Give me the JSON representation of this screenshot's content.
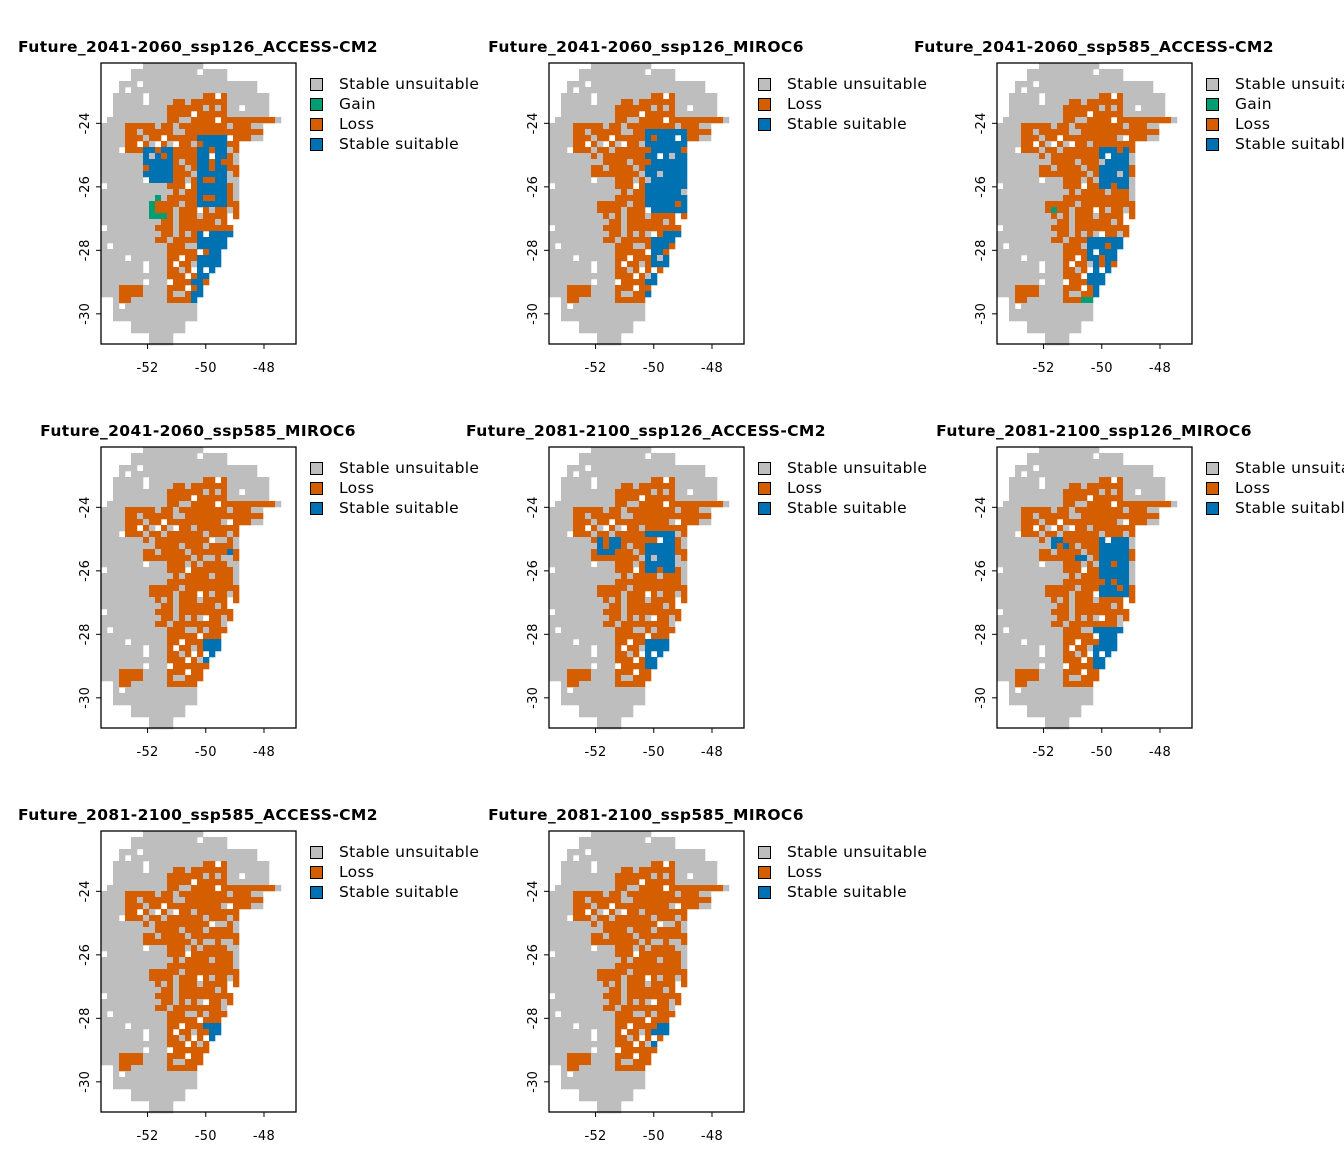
{
  "colors": {
    "Stable unsuitable": "#bebebe",
    "Gain": "#009e73",
    "Loss": "#d55e00",
    "Stable suitable": "#0072b2"
  },
  "x_tick_labels": [
    "-52",
    "-50",
    "-48"
  ],
  "y_tick_labels": [
    "-24",
    "-26",
    "-28",
    "-30"
  ],
  "panels": [
    {
      "title": "Future_2041-2060_ssp126_ACCESS-CM2",
      "legend": [
        "Stable unsuitable",
        "Gain",
        "Loss",
        "Stable suitable"
      ]
    },
    {
      "title": "Future_2041-2060_ssp126_MIROC6",
      "legend": [
        "Stable unsuitable",
        "Loss",
        "Stable suitable"
      ]
    },
    {
      "title": "Future_2041-2060_ssp585_ACCESS-CM2",
      "legend": [
        "Stable unsuitable",
        "Gain",
        "Loss",
        "Stable suitable"
      ]
    },
    {
      "title": "Future_2041-2060_ssp585_MIROC6",
      "legend": [
        "Stable unsuitable",
        "Loss",
        "Stable suitable"
      ]
    },
    {
      "title": "Future_2081-2100_ssp126_ACCESS-CM2",
      "legend": [
        "Stable unsuitable",
        "Loss",
        "Stable suitable"
      ]
    },
    {
      "title": "Future_2081-2100_ssp126_MIROC6",
      "legend": [
        "Stable unsuitable",
        "Loss",
        "Stable suitable"
      ]
    },
    {
      "title": "Future_2081-2100_ssp585_ACCESS-CM2",
      "legend": [
        "Stable unsuitable",
        "Loss",
        "Stable suitable"
      ]
    },
    {
      "title": "Future_2081-2100_ssp585_MIROC6",
      "legend": [
        "Stable unsuitable",
        "Loss",
        "Stable suitable"
      ]
    }
  ]
}
